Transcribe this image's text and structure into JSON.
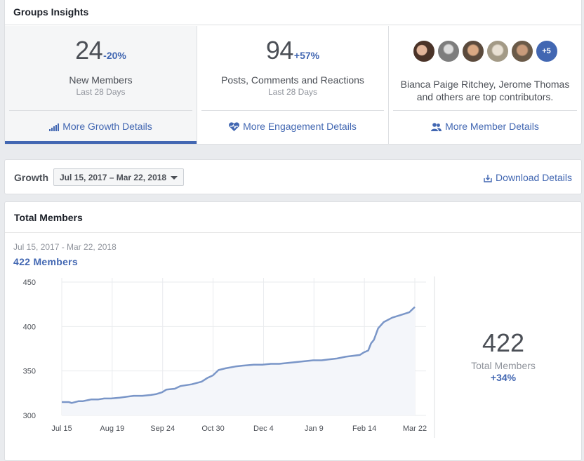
{
  "header": {
    "title": "Groups Insights"
  },
  "tiles": [
    {
      "number": "24",
      "change": "-20%",
      "label": "New Members",
      "period": "Last 28 Days",
      "link": "More Growth Details",
      "icon": "bar-chart-icon"
    },
    {
      "number": "94",
      "change": "+57%",
      "label": "Posts, Comments and Reactions",
      "period": "Last 28 Days",
      "link": "More Engagement Details",
      "icon": "heart-pulse-icon"
    },
    {
      "avatars_more": "+5",
      "contributors": "Bianca Paige Ritchey, Jerome Thomas and others are top contributors.",
      "link": "More Member Details",
      "icon": "people-icon"
    }
  ],
  "growth": {
    "title": "Growth",
    "date_range": "Jul 15, 2017 – Mar 22, 2018",
    "download": "Download Details",
    "download_icon": "download-icon"
  },
  "total_members": {
    "title": "Total Members",
    "range": "Jul 15, 2017 - Mar 22, 2018",
    "count_label": "422  Members",
    "side_number": "422",
    "side_label": "Total Members",
    "side_change": "+34%"
  },
  "colors": {
    "accent": "#4267b2",
    "line": "#7a96c8",
    "area": "#f4f6fa"
  },
  "chart_data": {
    "type": "line",
    "x_ticks": [
      "Jul 15",
      "Aug 19",
      "Sep 24",
      "Oct 30",
      "Dec 4",
      "Jan 9",
      "Feb 14",
      "Mar 22"
    ],
    "y_ticks": [
      300,
      350,
      400,
      450
    ],
    "ylim": [
      300,
      450
    ],
    "x_start": "2017-07-15",
    "x_end": "2018-03-22",
    "series": [
      {
        "x": [
          "2017-07-15",
          "2017-07-20",
          "2017-07-22",
          "2017-07-27",
          "2017-07-30",
          "2017-08-05",
          "2017-08-10",
          "2017-08-14",
          "2017-08-19",
          "2017-08-25",
          "2017-08-30",
          "2017-09-04",
          "2017-09-10",
          "2017-09-16",
          "2017-09-20",
          "2017-09-24",
          "2017-09-27",
          "2017-10-03",
          "2017-10-07",
          "2017-10-15",
          "2017-10-22",
          "2017-10-26",
          "2017-10-30",
          "2017-11-03",
          "2017-11-08",
          "2017-11-15",
          "2017-11-20",
          "2017-11-28",
          "2017-12-04",
          "2017-12-10",
          "2017-12-16",
          "2017-12-22",
          "2017-12-28",
          "2018-01-03",
          "2018-01-09",
          "2018-01-15",
          "2018-01-20",
          "2018-01-26",
          "2018-02-01",
          "2018-02-06",
          "2018-02-11",
          "2018-02-14",
          "2018-02-17",
          "2018-02-19",
          "2018-02-21",
          "2018-02-24",
          "2018-02-28",
          "2018-03-06",
          "2018-03-12",
          "2018-03-18",
          "2018-03-22"
        ],
        "y": [
          315,
          315,
          314,
          316,
          316,
          318,
          318,
          319,
          319,
          320,
          321,
          322,
          322,
          323,
          324,
          326,
          329,
          330,
          333,
          335,
          338,
          342,
          345,
          351,
          353,
          355,
          356,
          357,
          357,
          358,
          358,
          359,
          360,
          361,
          362,
          362,
          363,
          364,
          366,
          367,
          368,
          371,
          373,
          381,
          385,
          398,
          405,
          410,
          413,
          416,
          422
        ]
      }
    ]
  }
}
